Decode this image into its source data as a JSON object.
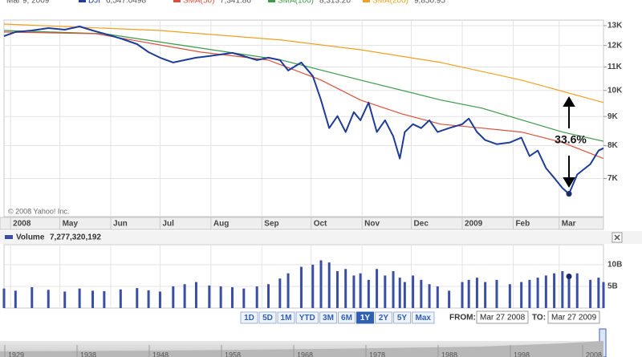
{
  "legend_header": {
    "date": "Mar 9, 2009"
  },
  "chart_data": [
    {
      "type": "line",
      "log_scale": true,
      "grid": true,
      "copyright": "© 2008 Yahoo! Inc.",
      "x": [
        -4,
        3,
        13,
        23,
        33,
        42,
        50,
        57,
        67,
        77,
        84,
        91,
        99,
        106,
        113,
        121,
        128,
        135,
        142,
        150,
        157,
        164,
        169,
        177,
        184,
        189,
        194,
        199,
        204,
        209,
        213,
        218,
        223,
        228,
        233,
        237,
        240,
        245,
        250,
        255,
        260,
        267,
        275,
        279,
        284,
        289,
        296,
        304,
        311,
        316,
        321,
        326,
        331,
        336,
        340,
        345,
        353,
        358,
        361
      ],
      "xlim": [
        -4,
        361
      ],
      "xticks": [
        {
          "value": 0,
          "label": "2008"
        },
        {
          "value": 30,
          "label": "May"
        },
        {
          "value": 61,
          "label": "Jun"
        },
        {
          "value": 91,
          "label": "Jul"
        },
        {
          "value": 122,
          "label": "Aug"
        },
        {
          "value": 153,
          "label": "Sep"
        },
        {
          "value": 183,
          "label": "Oct"
        },
        {
          "value": 214,
          "label": "Nov"
        },
        {
          "value": 244,
          "label": "Dec"
        },
        {
          "value": 275,
          "label": "2009"
        },
        {
          "value": 306,
          "label": "Feb"
        },
        {
          "value": 334,
          "label": "Mar"
        }
      ],
      "ylim": [
        6000,
        13300
      ],
      "yticks": [
        {
          "value": 7000,
          "label": "7K"
        },
        {
          "value": 8000,
          "label": "8K"
        },
        {
          "value": 9000,
          "label": "9K"
        },
        {
          "value": 10000,
          "label": "10K"
        },
        {
          "value": 11000,
          "label": "11K"
        },
        {
          "value": 12000,
          "label": "12K"
        },
        {
          "value": 13000,
          "label": "13K"
        }
      ],
      "series": [
        {
          "name": "DJI",
          "legend_value": "6,547.0498",
          "color": "#1f3c99",
          "values": [
            12465,
            12670,
            12750,
            12875,
            12790,
            12957,
            12750,
            12585,
            12345,
            12065,
            11680,
            11420,
            11200,
            11310,
            11420,
            11495,
            11570,
            11645,
            11495,
            11310,
            11420,
            11310,
            10840,
            11200,
            10600,
            9620,
            8585,
            9015,
            8450,
            9160,
            8865,
            9525,
            8450,
            8865,
            8310,
            7590,
            8450,
            8725,
            8585,
            8865,
            8450,
            8585,
            8725,
            8925,
            8450,
            8180,
            8045,
            8100,
            8260,
            7665,
            7840,
            7300,
            7020,
            6735,
            6580,
            7115,
            7420,
            7840,
            7915
          ]
        },
        {
          "name": "SMA(50)",
          "legend_value": "7,341.86",
          "color": "#d9513c",
          "x": [
            -4,
            52,
            116,
            157,
            189,
            213,
            238,
            262,
            287,
            311,
            336,
            361
          ],
          "values": [
            12670,
            12585,
            11680,
            11310,
            10430,
            9620,
            9100,
            8725,
            8585,
            8450,
            8100,
            7590
          ]
        },
        {
          "name": "SMA(100)",
          "legend_value": "8,313.20",
          "color": "#3c9a48",
          "x": [
            -4,
            57,
            116,
            165,
            213,
            262,
            287,
            336,
            361
          ],
          "values": [
            12750,
            12585,
            11870,
            11310,
            10430,
            9620,
            9310,
            8450,
            8140
          ]
        },
        {
          "name": "SMA(200)",
          "legend_value": "9,850.95",
          "color": "#f0a020",
          "x": [
            -4,
            91,
            165,
            213,
            262,
            311,
            361
          ],
          "values": [
            13085,
            12750,
            12265,
            11795,
            11200,
            10430,
            9525
          ]
        }
      ],
      "annotation": "33.6%",
      "marker": {
        "x": 340,
        "value": 6580
      }
    },
    {
      "type": "bar",
      "title": "Volume",
      "legend_value": "7,277,320,192",
      "grid": true,
      "x": [
        -4,
        3,
        13,
        23,
        33,
        42,
        50,
        57,
        67,
        77,
        84,
        91,
        99,
        106,
        113,
        121,
        128,
        135,
        142,
        150,
        157,
        164,
        169,
        177,
        184,
        189,
        194,
        199,
        204,
        209,
        213,
        218,
        223,
        228,
        233,
        237,
        240,
        245,
        250,
        255,
        260,
        267,
        275,
        279,
        284,
        289,
        296,
        304,
        311,
        316,
        321,
        326,
        331,
        336,
        340,
        345,
        353,
        358,
        361
      ],
      "xlim": [
        -4,
        361
      ],
      "ylim": [
        0,
        14.6
      ],
      "yticks": [
        {
          "value": 5,
          "label": "5B"
        },
        {
          "value": 10,
          "label": "10B"
        }
      ],
      "series": [
        {
          "name": "Volume",
          "color": "#3a4fa3",
          "values": [
            4.5,
            4.0,
            4.8,
            4.2,
            3.8,
            4.5,
            4.0,
            3.9,
            4.3,
            4.6,
            4.1,
            3.8,
            5.0,
            5.5,
            6.0,
            5.2,
            5.0,
            4.8,
            4.5,
            5.0,
            5.5,
            6.8,
            8.0,
            9.5,
            10.0,
            11.0,
            10.5,
            8.5,
            9.0,
            7.5,
            8.0,
            6.5,
            9.0,
            7.5,
            8.5,
            7.0,
            6.0,
            7.5,
            6.5,
            5.5,
            5.0,
            4.0,
            6.0,
            6.5,
            7.0,
            6.0,
            6.5,
            5.5,
            6.0,
            6.5,
            7.0,
            7.5,
            8.0,
            8.5,
            7.5,
            8.0,
            6.5,
            7.0,
            6.0
          ]
        }
      ],
      "marker": {
        "x": 340,
        "value": 7.3
      }
    }
  ],
  "range_buttons": [
    "1D",
    "5D",
    "1M",
    "YTD",
    "3M",
    "6M",
    "1Y",
    "2Y",
    "5Y",
    "Max"
  ],
  "active_range": "1Y",
  "date_range": {
    "from_label": "FROM:",
    "from": "Mar 27 2008",
    "to_label": "TO:",
    "to": "Mar 27 2009"
  },
  "navigator": {
    "labels": [
      "1929",
      "1938",
      "1948",
      "1958",
      "1968",
      "1978",
      "1988",
      "1998",
      "2008"
    ]
  }
}
